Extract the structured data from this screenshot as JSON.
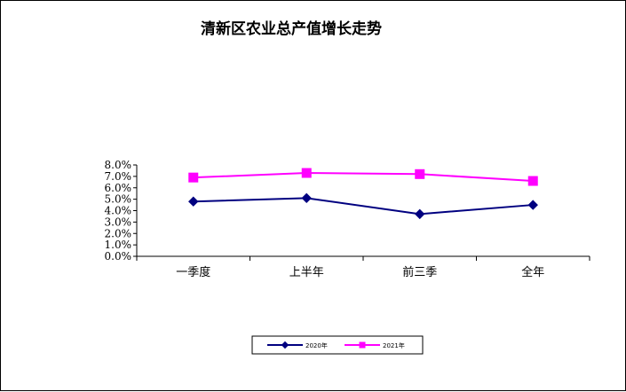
{
  "chart_data": {
    "type": "line",
    "title": "清新区农业总产值增长走势",
    "xlabel": "",
    "ylabel": "",
    "categories": [
      "一季度",
      "上半年",
      "前三季",
      "全年"
    ],
    "y_ticks": [
      "0.0%",
      "1.0%",
      "2.0%",
      "3.0%",
      "4.0%",
      "5.0%",
      "6.0%",
      "7.0%",
      "8.0%"
    ],
    "ylim": [
      0,
      8
    ],
    "grid": false,
    "legend_position": "bottom",
    "series": [
      {
        "name": "2020年",
        "values": [
          4.8,
          5.1,
          3.7,
          4.5
        ],
        "color": "#000080",
        "marker": "diamond"
      },
      {
        "name": "2021年",
        "values": [
          6.9,
          7.3,
          7.2,
          6.6
        ],
        "color": "#ff00ff",
        "marker": "square"
      }
    ]
  }
}
